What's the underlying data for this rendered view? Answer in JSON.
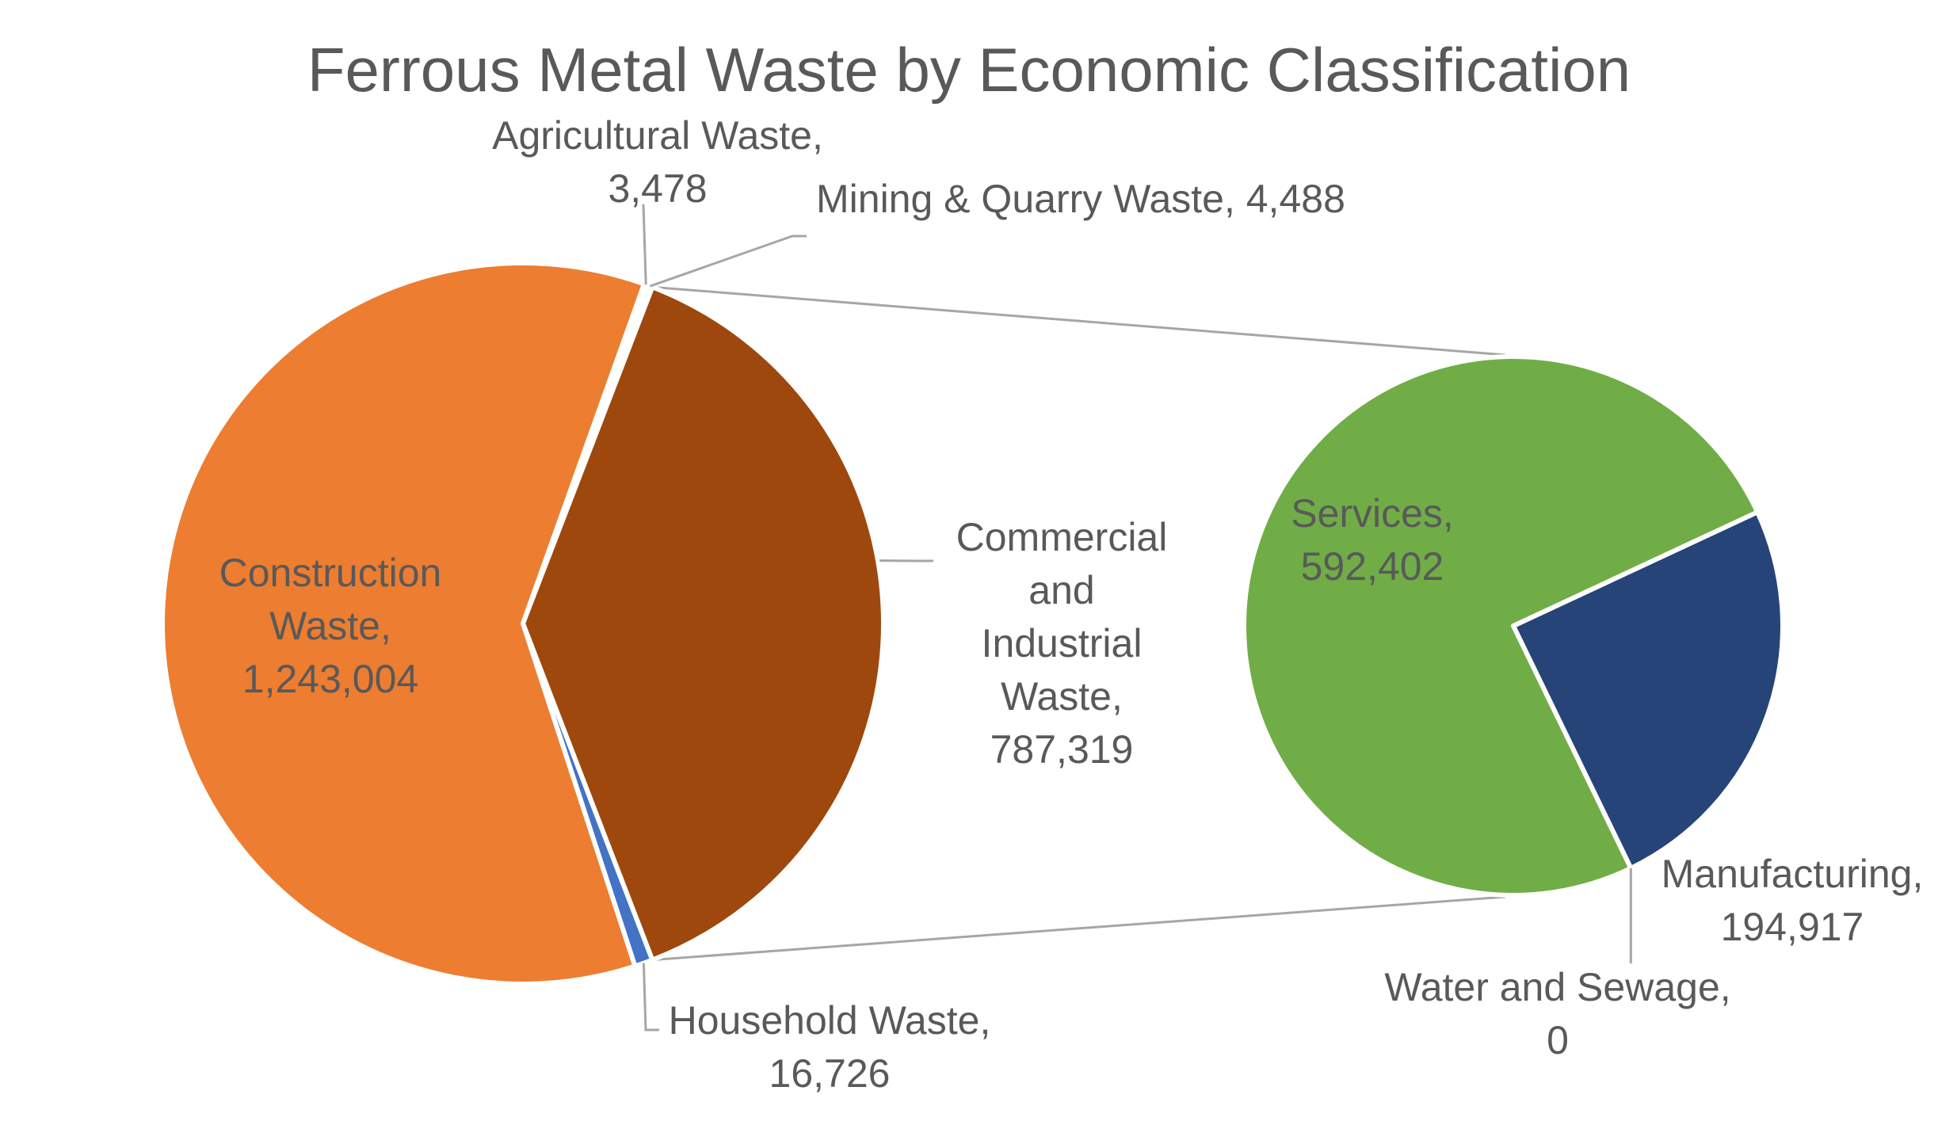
{
  "chart_data": {
    "type": "pie",
    "subtype": "pie-of-pie",
    "title": "Ferrous Metal Waste by Economic Classification",
    "primary": {
      "slices": [
        {
          "key": "agricultural",
          "name": "Agricultural Waste,",
          "value_label": "3,478",
          "value": 3478,
          "color": "#4472C4"
        },
        {
          "key": "mining",
          "name": "Mining & Quarry Waste,",
          "value_label": "4,488",
          "value": 4488,
          "color": "#A5A5A5"
        },
        {
          "key": "commercial",
          "name": "Commercial and Industrial Waste,",
          "value_label": "787,319",
          "value": 787319,
          "color": "#9E480E",
          "breakout": true
        },
        {
          "key": "household",
          "name": "Household Waste,",
          "value_label": "16,726",
          "value": 16726,
          "color": "#4472C4"
        },
        {
          "key": "construction",
          "name": "Construction Waste,",
          "value_label": "1,243,004",
          "value": 1243004,
          "color": "#ED7D31"
        }
      ]
    },
    "secondary": {
      "slices": [
        {
          "key": "manufacturing",
          "name": "Manufacturing,",
          "value_label": "194,917",
          "value": 194917,
          "color": "#264478"
        },
        {
          "key": "water",
          "name": "Water and Sewage,",
          "value_label": "0",
          "value": 0,
          "color": "#A5A5A5"
        },
        {
          "key": "services",
          "name": "Services,",
          "value_label": "592,402",
          "value": 592402,
          "color": "#70AD47"
        }
      ]
    }
  }
}
